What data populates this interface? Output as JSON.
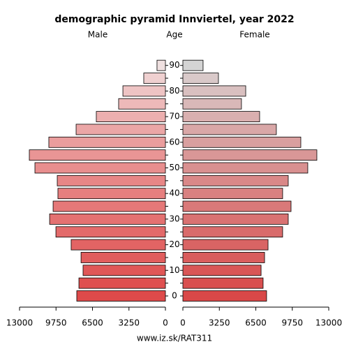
{
  "chart_data": {
    "type": "pyramid",
    "title": "demographic pyramid Innviertel, year 2022",
    "left_label": "Male",
    "center_label": "Age",
    "right_label": "Female",
    "footer": "www.iz.sk/RAT311",
    "categories": [
      0,
      null,
      10,
      null,
      20,
      null,
      30,
      null,
      40,
      null,
      50,
      null,
      60,
      null,
      70,
      null,
      80,
      null,
      90
    ],
    "series": [
      {
        "name": "Male",
        "side": "left",
        "values": [
          7900,
          7710,
          7340,
          7520,
          8400,
          9760,
          10320,
          10010,
          9580,
          9640,
          11630,
          12130,
          10390,
          7960,
          6160,
          4170,
          3790,
          1930,
          750
        ],
        "colors": [
          "#de4a4a",
          "#df5050",
          "#e05757",
          "#e15d5d",
          "#e26464",
          "#e36a6a",
          "#e47171",
          "#e57878",
          "#e67f7f",
          "#e78686",
          "#e88e8e",
          "#e99595",
          "#ea9d9d",
          "#eba6a6",
          "#ecafaf",
          "#edb9b9",
          "#eec4c4",
          "#efd0d0",
          "#efe0e0"
        ]
      },
      {
        "name": "Female",
        "side": "right",
        "values": [
          7460,
          7150,
          6970,
          7280,
          7590,
          8890,
          9390,
          9640,
          8890,
          9390,
          11130,
          11940,
          10510,
          8330,
          6840,
          5220,
          5600,
          3170,
          1800
        ],
        "colors": [
          "#d94848",
          "#d94f4f",
          "#d95656",
          "#d95d5d",
          "#d96464",
          "#d96b6b",
          "#d97272",
          "#d97979",
          "#d98181",
          "#d98888",
          "#d99090",
          "#d99797",
          "#d99f9f",
          "#d9a7a7",
          "#d9afaf",
          "#d9b8b8",
          "#d9c0c0",
          "#d9c9c9",
          "#d4d4d4"
        ]
      }
    ],
    "xlim": [
      0,
      13000
    ],
    "xticks": [
      0,
      3250,
      6500,
      9750,
      13000
    ]
  }
}
